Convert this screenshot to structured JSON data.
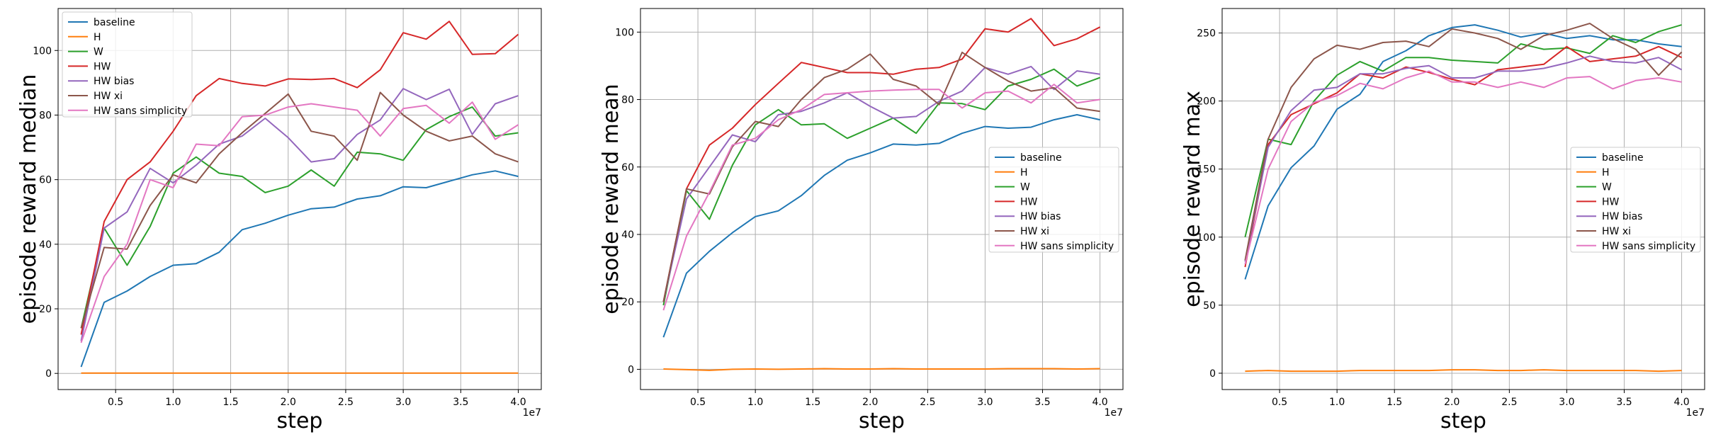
{
  "colors": {
    "baseline": "#1f77b4",
    "H": "#ff7f0e",
    "W": "#2ca02c",
    "HW": "#d62728",
    "HW bias": "#9467bd",
    "HW xi": "#8c564b",
    "HW sans simplicity": "#e377c2"
  },
  "chart_data": [
    {
      "type": "line",
      "xlabel": "step",
      "ylabel": "episode reward median",
      "x_multiplier": "1e7",
      "xlim": [
        0.0,
        4.2
      ],
      "ylim": [
        -5,
        113
      ],
      "xticks": [
        "0.5",
        "1.0",
        "1.5",
        "2.0",
        "2.5",
        "3.0",
        "3.5",
        "4.0"
      ],
      "yticks": [
        "0",
        "20",
        "40",
        "60",
        "80",
        "100"
      ],
      "grid": true,
      "legend_position": "upper left",
      "x": [
        0.2,
        0.4,
        0.6,
        0.8,
        1.0,
        1.2,
        1.4,
        1.6,
        1.8,
        2.0,
        2.2,
        2.4,
        2.6,
        2.8,
        3.0,
        3.2,
        3.4,
        3.6,
        3.8,
        4.0
      ],
      "series": [
        {
          "name": "baseline",
          "values": [
            2,
            22,
            25.5,
            30,
            33.5,
            34,
            37.5,
            44.5,
            46.5,
            49,
            51,
            51.5,
            54,
            55,
            57.8,
            57.5,
            59.5,
            61.5,
            62.7,
            61
          ]
        },
        {
          "name": "H",
          "values": [
            0.1,
            0.1,
            0.1,
            0.1,
            0.1,
            0.1,
            0.1,
            0.1,
            0.1,
            0.1,
            0.1,
            0.1,
            0.1,
            0.1,
            0.1,
            0.1,
            0.1,
            0.1,
            0.1,
            0.1
          ]
        },
        {
          "name": "W",
          "values": [
            14,
            45,
            33.5,
            45.5,
            62,
            67,
            62,
            61,
            56,
            58,
            63,
            58,
            68.5,
            68,
            66,
            75.5,
            79.5,
            82.5,
            73.5,
            74.5
          ]
        },
        {
          "name": "HW",
          "values": [
            12,
            47,
            60,
            65.5,
            75,
            86,
            91.3,
            89.8,
            89,
            91.2,
            91,
            91.3,
            88.5,
            94,
            105.5,
            103.5,
            109,
            98.8,
            99,
            105
          ]
        },
        {
          "name": "HW bias",
          "values": [
            10,
            45,
            50,
            63.5,
            59,
            64.5,
            71,
            73.5,
            79,
            73,
            65.5,
            66.5,
            74,
            78.5,
            88.2,
            84.8,
            88,
            74,
            83.5,
            86
          ]
        },
        {
          "name": "HW xi",
          "values": [
            14,
            39,
            38.5,
            52,
            61.5,
            59,
            68,
            74.5,
            80.5,
            86.5,
            75,
            73.5,
            66,
            87,
            80,
            75,
            72,
            73.5,
            68,
            65.5
          ]
        },
        {
          "name": "HW sans simplicity",
          "values": [
            9.5,
            30,
            40,
            60,
            57.5,
            71,
            70.5,
            79.5,
            80,
            82.5,
            83.5,
            82.5,
            81.5,
            73.5,
            82,
            83,
            77.5,
            84,
            72.5,
            77
          ]
        }
      ]
    },
    {
      "type": "line",
      "xlabel": "step",
      "ylabel": "episode reward mean",
      "x_multiplier": "1e7",
      "xlim": [
        0.0,
        4.2
      ],
      "ylim": [
        -6,
        107
      ],
      "xticks": [
        "0.5",
        "1.0",
        "1.5",
        "2.0",
        "2.5",
        "3.0",
        "3.5",
        "4.0"
      ],
      "yticks": [
        "0",
        "20",
        "40",
        "60",
        "80",
        "100"
      ],
      "grid": true,
      "legend_position": "center right",
      "x": [
        0.2,
        0.4,
        0.6,
        0.8,
        1.0,
        1.2,
        1.4,
        1.6,
        1.8,
        2.0,
        2.2,
        2.4,
        2.6,
        2.8,
        3.0,
        3.2,
        3.4,
        3.6,
        3.8,
        4.0
      ],
      "series": [
        {
          "name": "baseline",
          "values": [
            9.5,
            28.5,
            35,
            40.5,
            45.3,
            47,
            51.5,
            57.5,
            62,
            64.2,
            66.8,
            66.5,
            67,
            70,
            72,
            71.5,
            71.8,
            74,
            75.5,
            74
          ]
        },
        {
          "name": "H",
          "values": [
            0.1,
            -0.1,
            -0.3,
            0.0,
            0.1,
            0.0,
            0.1,
            0.2,
            0.1,
            0.1,
            0.2,
            0.1,
            0.1,
            0.1,
            0.1,
            0.2,
            0.2,
            0.2,
            0.1,
            0.2
          ]
        },
        {
          "name": "W",
          "values": [
            19,
            53,
            44.5,
            60.5,
            72.5,
            77,
            72.5,
            72.8,
            68.5,
            71.5,
            74.5,
            70,
            79,
            78.8,
            77,
            84,
            86,
            89,
            84,
            86.5
          ]
        },
        {
          "name": "HW",
          "values": [
            20,
            53.5,
            66.5,
            71.5,
            78.5,
            84.8,
            91,
            89.5,
            88,
            88,
            87.5,
            89,
            89.5,
            92,
            101,
            100,
            104,
            96,
            98,
            101.5
          ]
        },
        {
          "name": "HW bias",
          "values": [
            20,
            50.5,
            60,
            69.5,
            67.5,
            75.5,
            76.5,
            79,
            82,
            78,
            74.5,
            75,
            79.5,
            82.5,
            89.5,
            87.5,
            89.8,
            83,
            88.5,
            87.5
          ]
        },
        {
          "name": "HW xi",
          "values": [
            20,
            53.5,
            52,
            66,
            73.5,
            72,
            80,
            86.5,
            89,
            93.5,
            86,
            84,
            78.5,
            94,
            89.5,
            85.5,
            82.5,
            83.5,
            77.5,
            76.5
          ]
        },
        {
          "name": "HW sans simplicity",
          "values": [
            17.5,
            39.5,
            52.5,
            66.5,
            68.5,
            74,
            77,
            81.5,
            82,
            82.5,
            82.8,
            83,
            83,
            77.5,
            82,
            82.5,
            79,
            84.5,
            79,
            80
          ]
        }
      ]
    },
    {
      "type": "line",
      "xlabel": "step",
      "ylabel": "episode reward max",
      "x_multiplier": "1e7",
      "xlim": [
        0.0,
        4.2
      ],
      "ylim": [
        -12,
        268
      ],
      "xticks": [
        "0.5",
        "1.0",
        "1.5",
        "2.0",
        "2.5",
        "3.0",
        "3.5",
        "4.0"
      ],
      "yticks": [
        "0",
        "50",
        "100",
        "150",
        "200",
        "250"
      ],
      "grid": true,
      "legend_position": "center right",
      "x": [
        0.2,
        0.4,
        0.6,
        0.8,
        1.0,
        1.2,
        1.4,
        1.6,
        1.8,
        2.0,
        2.2,
        2.4,
        2.6,
        2.8,
        3.0,
        3.2,
        3.4,
        3.6,
        3.8,
        4.0
      ],
      "series": [
        {
          "name": "baseline",
          "values": [
            69,
            123,
            151,
            167,
            194,
            205,
            229,
            237,
            248,
            254,
            256,
            252,
            247,
            250,
            246,
            248,
            245,
            245,
            242,
            240
          ]
        },
        {
          "name": "H",
          "values": [
            1.5,
            2,
            1.5,
            1.5,
            1.5,
            2,
            2,
            2,
            2,
            2.5,
            2.5,
            2,
            2,
            2.5,
            2,
            2,
            2,
            2,
            1.5,
            2
          ]
        },
        {
          "name": "W",
          "values": [
            100,
            172,
            168,
            200,
            219,
            229,
            222,
            232,
            232,
            230,
            229,
            228,
            242,
            238,
            239,
            235,
            248,
            243,
            251,
            256
          ]
        },
        {
          "name": "HW",
          "values": [
            78,
            168,
            190,
            198,
            206,
            220,
            217,
            225,
            221,
            216,
            212,
            223,
            225,
            227,
            240,
            229,
            231,
            233,
            240,
            232
          ]
        },
        {
          "name": "HW bias",
          "values": [
            82,
            166,
            193,
            208,
            210,
            220,
            220,
            224,
            226,
            217,
            217,
            222,
            222,
            224,
            228,
            233,
            229,
            228,
            232,
            223
          ]
        },
        {
          "name": "HW xi",
          "values": [
            83,
            172,
            210,
            231,
            241,
            238,
            243,
            244,
            240,
            253,
            250,
            246,
            238,
            248,
            252,
            257,
            246,
            238,
            219,
            236
          ]
        },
        {
          "name": "HW sans simplicity",
          "values": [
            80,
            150,
            185,
            199,
            204,
            213,
            209,
            217,
            222,
            214,
            214,
            210,
            214,
            210,
            217,
            218,
            209,
            215,
            217,
            214
          ]
        }
      ]
    }
  ]
}
